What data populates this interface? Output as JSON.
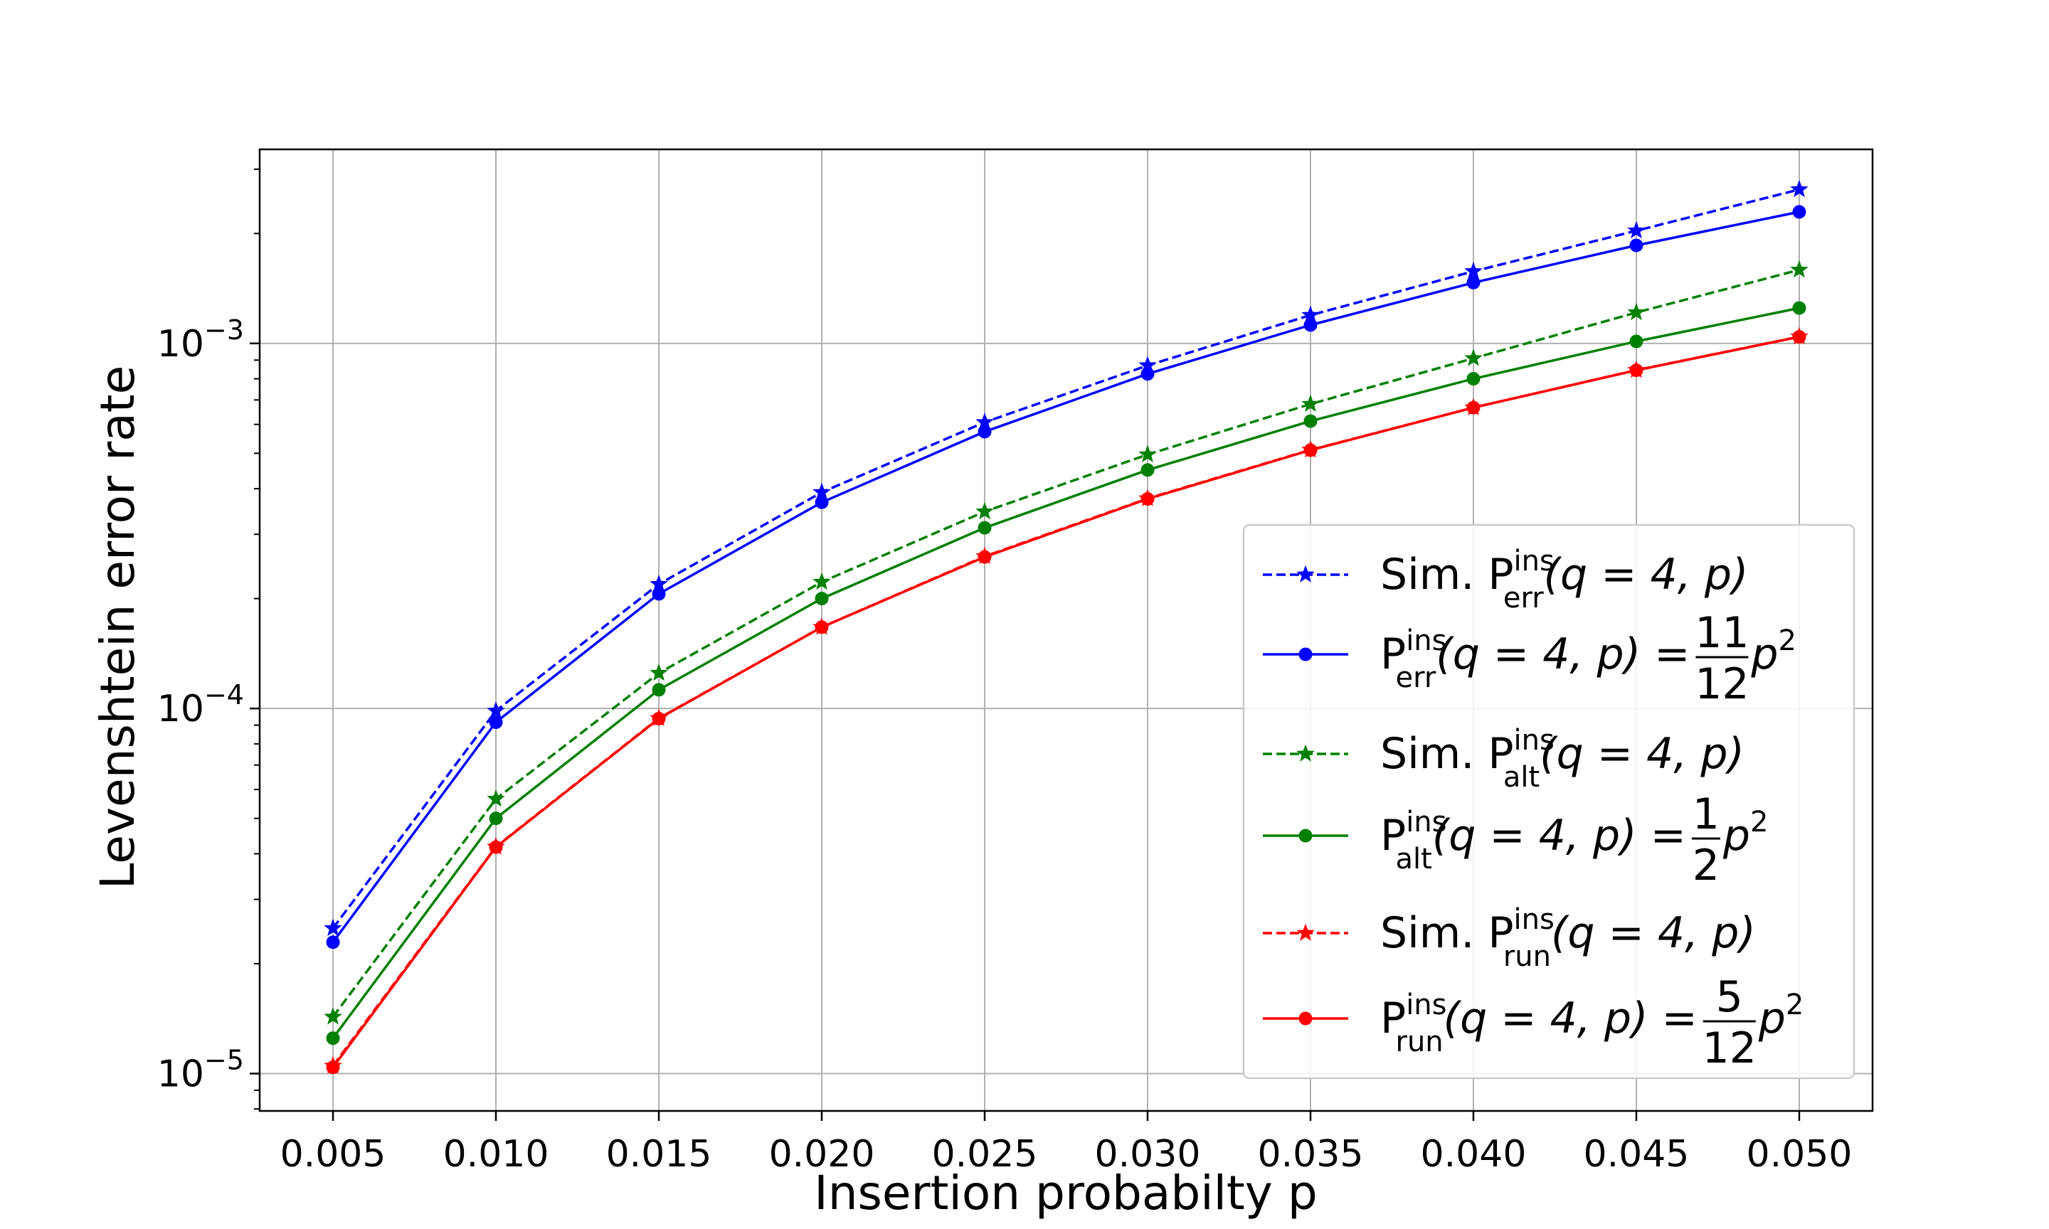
{
  "chart_data": {
    "type": "line",
    "xlabel": "Insertion probabilty p",
    "ylabel": "Levenshtein error rate",
    "x": [
      0.005,
      0.01,
      0.015,
      0.02,
      0.025,
      0.03,
      0.035,
      0.04,
      0.045,
      0.05
    ],
    "x_tick_labels": [
      "0.005",
      "0.010",
      "0.015",
      "0.020",
      "0.025",
      "0.030",
      "0.035",
      "0.040",
      "0.045",
      "0.050"
    ],
    "xlim": [
      0.00275,
      0.05225
    ],
    "y_scale": "log",
    "ylim": [
      7.9e-06,
      0.0034
    ],
    "y_ticks": [
      {
        "value": 1e-05,
        "base": "10",
        "exp": "−5"
      },
      {
        "value": 0.0001,
        "base": "10",
        "exp": "−4"
      },
      {
        "value": 0.001,
        "base": "10",
        "exp": "−3"
      }
    ],
    "grid": true,
    "legend_position": "lower-right",
    "series": [
      {
        "name": "Sim. P_err^ins(q=4,p)",
        "color": "#0000ff",
        "style": "dashed",
        "marker": "star",
        "legend": {
          "prefix": "Sim. P",
          "sup": "ins",
          "sub": "err",
          "args": "(q = 4, p)",
          "frac_num": "",
          "frac_den": "",
          "tail": ""
        },
        "values": [
          2.5e-05,
          9.85e-05,
          0.000219,
          0.000391,
          0.000608,
          0.00087,
          0.001195,
          0.001575,
          0.002035,
          0.00264
        ]
      },
      {
        "name": "P_err^ins(q=4,p)=11/12 p^2",
        "color": "#0000ff",
        "style": "solid",
        "marker": "circle",
        "legend": {
          "prefix": "P",
          "sup": "ins",
          "sub": "err",
          "args": "(q = 4, p) = ",
          "frac_num": "11",
          "frac_den": "12",
          "tail": "p"
        },
        "values": [
          2.29e-05,
          9.17e-05,
          0.000206,
          0.000367,
          0.000573,
          0.000825,
          0.001123,
          0.001467,
          0.001856,
          0.002292
        ]
      },
      {
        "name": "Sim. P_alt^ins(q=4,p)",
        "color": "#008000",
        "style": "dashed",
        "marker": "star",
        "legend": {
          "prefix": "Sim. P",
          "sup": "ins",
          "sub": "alt",
          "args": "(q = 4, p)",
          "frac_num": "",
          "frac_den": "",
          "tail": ""
        },
        "values": [
          1.43e-05,
          5.65e-05,
          0.000125,
          0.000222,
          0.000346,
          0.000496,
          0.000682,
          0.00091,
          0.001215,
          0.00159
        ]
      },
      {
        "name": "P_alt^ins(q=4,p)=1/2 p^2",
        "color": "#008000",
        "style": "solid",
        "marker": "circle",
        "legend": {
          "prefix": "P",
          "sup": "ins",
          "sub": "alt",
          "args": "(q = 4, p) = ",
          "frac_num": "1",
          "frac_den": "2",
          "tail": "p"
        },
        "values": [
          1.25e-05,
          5e-05,
          0.0001125,
          0.0002,
          0.0003125,
          0.00045,
          0.0006125,
          0.0008,
          0.0010125,
          0.00125
        ]
      },
      {
        "name": "Sim. P_run^ins(q=4,p)",
        "color": "#ff0000",
        "style": "dashed",
        "marker": "star",
        "legend": {
          "prefix": "Sim. P",
          "sup": "ins",
          "sub": "run",
          "args": "(q = 4, p)",
          "frac_num": "",
          "frac_den": "",
          "tail": ""
        },
        "values": [
          1.05e-05,
          4.18e-05,
          9.4e-05,
          0.000167,
          0.000261,
          0.000376,
          0.000511,
          0.000667,
          0.000845,
          0.001043
        ]
      },
      {
        "name": "P_run^ins(q=4,p)=5/12 p^2",
        "color": "#ff0000",
        "style": "solid",
        "marker": "circle",
        "legend": {
          "prefix": "P",
          "sup": "ins",
          "sub": "run",
          "args": "(q = 4, p) = ",
          "frac_num": "5",
          "frac_den": "12",
          "tail": "p"
        },
        "values": [
          1.04e-05,
          4.17e-05,
          9.38e-05,
          0.000167,
          0.00026,
          0.000375,
          0.00051,
          0.000667,
          0.000844,
          0.001042
        ]
      }
    ]
  }
}
